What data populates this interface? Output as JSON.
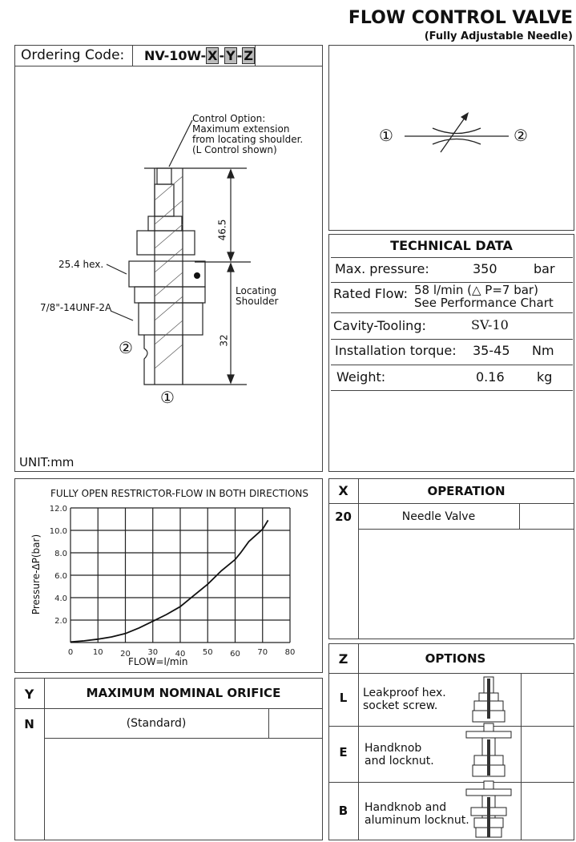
{
  "header": {
    "title": "FLOW CONTROL VALVE",
    "subtitle": "(Fully Adjustable Needle)"
  },
  "ordering": {
    "label": "Ordering Code:",
    "prefix": "NV-10W-",
    "x": "X",
    "y": "Y",
    "z": "Z",
    "sep": "-"
  },
  "drawing": {
    "control_option": [
      "Control Option:",
      "Maximum extension",
      "from locating shoulder.",
      "(L Control shown)"
    ],
    "hex": "25.4 hex.",
    "thread": "7/8\"-14UNF-2A",
    "dim_top": "46.5",
    "dim_bottom": "32",
    "locating": [
      "Locating",
      "Shoulder"
    ],
    "port1": "①",
    "port2": "②",
    "unit": "UNIT:mm"
  },
  "symbol": {
    "port1": "①",
    "port2": "②"
  },
  "technical": {
    "title": "TECHNICAL DATA",
    "rows": [
      {
        "label": "Max. pressure:",
        "value": "350",
        "unit": "bar"
      },
      {
        "label": "Rated Flow:",
        "value": "58 l/min (△ P=7 bar)",
        "value2": "See Performance Chart"
      },
      {
        "label": "Cavity-Tooling:",
        "value": "SV-10"
      },
      {
        "label": "Installation torque:",
        "value": "35-45",
        "unit": "Nm"
      },
      {
        "label": "Weight:",
        "value": "0.16",
        "unit": "kg"
      }
    ]
  },
  "chart_data": {
    "type": "line",
    "title": "FULLY OPEN RESTRICTOR-FLOW IN BOTH DIRECTIONS",
    "xlabel": "FLOW=l/min",
    "ylabel": "Pressure-ΔP(bar)",
    "xlim": [
      0,
      80
    ],
    "ylim": [
      0,
      12
    ],
    "xticks": [
      "0",
      "10",
      "20",
      "30",
      "40",
      "50",
      "60",
      "70",
      "80"
    ],
    "yticks": [
      "2.0",
      "4.0",
      "6.0",
      "8.0",
      "10.0",
      "12.0"
    ],
    "grid": true,
    "series": [
      {
        "x": [
          0,
          5,
          10,
          15,
          20,
          25,
          30,
          35,
          40,
          45,
          50,
          55,
          60,
          62,
          65,
          70,
          72
        ],
        "y": [
          0.05,
          0.15,
          0.3,
          0.5,
          0.8,
          1.3,
          1.9,
          2.5,
          3.2,
          4.2,
          5.2,
          6.4,
          7.4,
          8.0,
          9.0,
          10.1,
          10.9
        ]
      }
    ]
  },
  "operation": {
    "col": "X",
    "title": "OPERATION",
    "rows": [
      {
        "code": "20",
        "label": "Needle Valve"
      }
    ]
  },
  "orifice": {
    "col": "Y",
    "title": "MAXIMUM NOMINAL ORIFICE",
    "rows": [
      {
        "code": "N",
        "label": "(Standard)"
      }
    ]
  },
  "options": {
    "col": "Z",
    "title": "OPTIONS",
    "rows": [
      {
        "code": "L",
        "label": [
          "Leakproof hex.",
          "socket screw."
        ]
      },
      {
        "code": "E",
        "label": [
          "Handknob",
          "and locknut."
        ]
      },
      {
        "code": "B",
        "label": [
          "Handknob and",
          "aluminum locknut."
        ]
      }
    ]
  }
}
